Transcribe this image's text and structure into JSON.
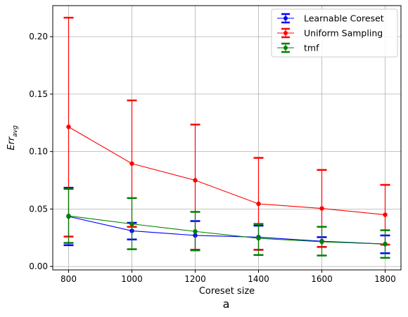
{
  "chart_data": {
    "type": "line",
    "title": "",
    "xlabel": "Coreset size",
    "ylabel": "Err_avg",
    "ylabel_main": "Err",
    "ylabel_sub": "avg",
    "caption": "a",
    "x": [
      800,
      1000,
      1200,
      1400,
      1600,
      1800
    ],
    "xlim": [
      750,
      1850
    ],
    "ylim": [
      -0.003,
      0.227
    ],
    "xticks": [
      800,
      1000,
      1200,
      1400,
      1600,
      1800
    ],
    "yticks": [
      0.0,
      0.05,
      0.1,
      0.15,
      0.2
    ],
    "ytick_labels": [
      "0.00",
      "0.05",
      "0.10",
      "0.15",
      "0.20"
    ],
    "grid": true,
    "legend_position": "top-right",
    "series": [
      {
        "name": "Learnable Coreset",
        "color": "#0000ff",
        "values": [
          0.0435,
          0.031,
          0.027,
          0.0255,
          0.022,
          0.0195
        ],
        "err_low": [
          0.0185,
          0.0235,
          0.0145,
          0.0145,
          0.017,
          0.0115
        ],
        "err_high": [
          0.0685,
          0.038,
          0.0395,
          0.0355,
          0.0255,
          0.027
        ]
      },
      {
        "name": "Uniform Sampling",
        "color": "#ff0000",
        "values": [
          0.1215,
          0.0895,
          0.075,
          0.0545,
          0.0505,
          0.045
        ],
        "err_low": [
          0.026,
          0.0345,
          0.0145,
          0.0145,
          0.017,
          0.019
        ],
        "err_high": [
          0.2165,
          0.1445,
          0.1235,
          0.0945,
          0.084,
          0.071
        ]
      },
      {
        "name": "tmf",
        "color": "#008000",
        "values": [
          0.044,
          0.037,
          0.0305,
          0.0245,
          0.0215,
          0.0195
        ],
        "err_low": [
          0.0205,
          0.015,
          0.014,
          0.01,
          0.0095,
          0.0075
        ],
        "err_high": [
          0.0675,
          0.0595,
          0.0475,
          0.037,
          0.0345,
          0.0315
        ]
      }
    ]
  }
}
